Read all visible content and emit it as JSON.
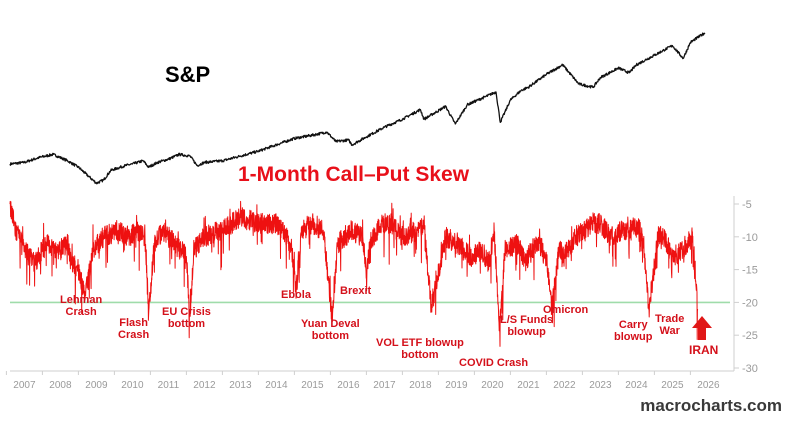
{
  "sp_label": "S&P",
  "source": "macrocharts.com",
  "chart_data": {
    "type": "line",
    "title": "1-Month Call–Put Skew",
    "x_ticks": [
      "2007",
      "2008",
      "2009",
      "2010",
      "2011",
      "2012",
      "2013",
      "2014",
      "2015",
      "2016",
      "2017",
      "2018",
      "2019",
      "2020",
      "2021",
      "2022",
      "2023",
      "2024",
      "2025",
      "2026"
    ],
    "y_ticks": [
      -5,
      -10,
      -15,
      -20,
      -25,
      -30
    ],
    "ylim": [
      -30,
      -5
    ],
    "xlim": [
      2006.6,
      2026.6
    ],
    "grid": false,
    "reference_line": {
      "value": -20,
      "color": "#9fdcaa"
    },
    "series": [
      {
        "name": "S&P",
        "color": "#111111",
        "x": [
          2006.6,
          2007.0,
          2007.4,
          2007.8,
          2008.2,
          2008.5,
          2008.8,
          2009.0,
          2009.2,
          2009.4,
          2009.8,
          2010.0,
          2010.3,
          2010.45,
          2010.7,
          2011.0,
          2011.3,
          2011.6,
          2011.8,
          2012.0,
          2012.5,
          2013.0,
          2013.5,
          2014.0,
          2014.5,
          2015.0,
          2015.4,
          2015.65,
          2016.0,
          2016.1,
          2016.5,
          2017.0,
          2017.5,
          2018.0,
          2018.1,
          2018.7,
          2018.97,
          2019.3,
          2019.8,
          2020.1,
          2020.22,
          2020.5,
          2020.8,
          2021.0,
          2021.5,
          2021.95,
          2022.4,
          2022.8,
          2023.0,
          2023.5,
          2023.8,
          2024.0,
          2024.5,
          2025.0,
          2025.3,
          2025.5,
          2025.9
        ],
        "y": [
          10,
          11,
          14,
          16,
          12,
          8,
          2,
          -2,
          0,
          6,
          9,
          10,
          12,
          8,
          11,
          13,
          16,
          15,
          9,
          11,
          12,
          15,
          18,
          22,
          26,
          28,
          30,
          24,
          25,
          22,
          27,
          33,
          38,
          44,
          38,
          46,
          35,
          47,
          52,
          55,
          36,
          50,
          56,
          58,
          66,
          72,
          60,
          58,
          64,
          70,
          67,
          72,
          78,
          84,
          76,
          86,
          92
        ]
      },
      {
        "name": "1-Month Call–Put Skew",
        "color": "#ee1111",
        "x": [
          2006.6,
          2006.75,
          2007.0,
          2007.3,
          2007.6,
          2008.0,
          2008.2,
          2008.3,
          2008.5,
          2008.7,
          2008.9,
          2009.2,
          2009.6,
          2009.9,
          2010.1,
          2010.35,
          2010.45,
          2010.6,
          2010.85,
          2011.0,
          2011.5,
          2011.6,
          2011.7,
          2012.0,
          2012.5,
          2013.0,
          2013.5,
          2014.0,
          2014.4,
          2014.55,
          2014.7,
          2015.0,
          2015.3,
          2015.55,
          2015.7,
          2015.9,
          2016.1,
          2016.4,
          2016.5,
          2016.6,
          2016.9,
          2017.2,
          2017.5,
          2017.9,
          2018.1,
          2018.3,
          2018.7,
          2019.0,
          2019.4,
          2019.7,
          2019.9,
          2020.05,
          2020.2,
          2020.35,
          2020.7,
          2020.9,
          2021.1,
          2021.3,
          2021.5,
          2021.65,
          2021.85,
          2022.0,
          2022.3,
          2022.6,
          2022.8,
          2023.0,
          2023.3,
          2023.6,
          2023.9,
          2024.1,
          2024.2,
          2024.35,
          2024.6,
          2024.75,
          2025.0,
          2025.3,
          2025.55,
          2025.7
        ],
        "y": [
          -5,
          -9,
          -12,
          -14,
          -11,
          -12,
          -11,
          -14,
          -15,
          -19,
          -12,
          -10,
          -9,
          -10,
          -9,
          -10,
          -22,
          -11,
          -9,
          -10,
          -13,
          -22,
          -12,
          -10,
          -9,
          -7,
          -8,
          -8,
          -11,
          -18,
          -9,
          -8,
          -9,
          -22,
          -11,
          -10,
          -9,
          -10,
          -16,
          -11,
          -8,
          -8,
          -10,
          -9,
          -8,
          -21,
          -10,
          -11,
          -13,
          -12,
          -14,
          -9,
          -24,
          -12,
          -11,
          -14,
          -12,
          -11,
          -13,
          -21,
          -12,
          -13,
          -10,
          -9,
          -8,
          -8,
          -10,
          -9,
          -9,
          -8,
          -11,
          -21,
          -10,
          -10,
          -13,
          -12,
          -10,
          -21
        ]
      }
    ],
    "annotations": [
      {
        "text": "Lehman\nCrash",
        "x": 2008.7
      },
      {
        "text": "Flash\nCrash",
        "x": 2010.45
      },
      {
        "text": "EU Crisis\nbottom",
        "x": 2011.6
      },
      {
        "text": "Ebola",
        "x": 2014.55
      },
      {
        "text": "Yuan Deval\nbottom",
        "x": 2015.55
      },
      {
        "text": "Brexit",
        "x": 2016.5
      },
      {
        "text": "VOL ETF blowup\nbottom",
        "x": 2018.1
      },
      {
        "text": "COVID Crash",
        "x": 2020.2
      },
      {
        "text": "L/S Funds\nblowup",
        "x": 2021.65
      },
      {
        "text": "Omicron",
        "x": 2021.95
      },
      {
        "text": "Carry\nblowup",
        "x": 2024.35
      },
      {
        "text": "Trade\nWar",
        "x": 2025.0
      },
      {
        "text": "IRAN",
        "x": 2025.7
      }
    ]
  }
}
